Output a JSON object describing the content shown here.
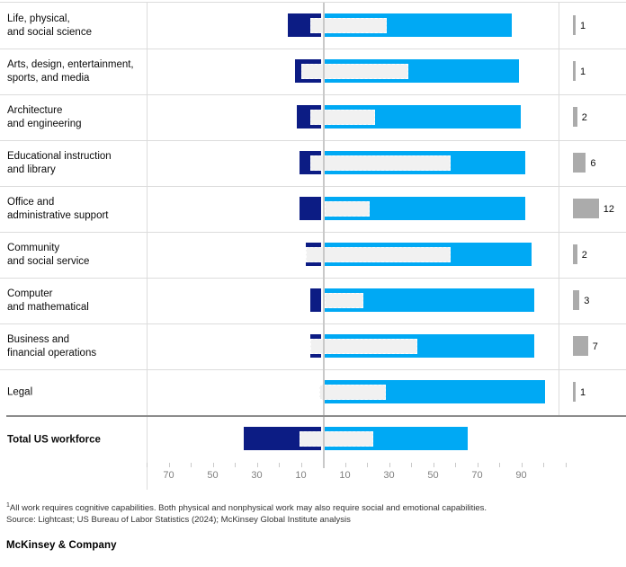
{
  "chart_data": {
    "type": "bar",
    "subtype": "diverging-horizontal-with-overlay",
    "title": "",
    "xlabel": "",
    "axis": {
      "zero_center": true,
      "range": [
        -80,
        110
      ],
      "tick_step": 10,
      "labeled_ticks_left": [
        70,
        50,
        30,
        10
      ],
      "labeled_ticks_right": [
        10,
        30,
        50,
        70,
        90
      ]
    },
    "series_meaning": {
      "left_bar": "physical work share (%)",
      "right_bar": "nonphysical work share (%)",
      "overlay_bar": "social and emotional capabilities span (%)",
      "right_column": "value shown beside gray bar"
    },
    "rows": [
      {
        "label": "Life, physical,\nand social science",
        "physical": 15,
        "nonphysical": 85,
        "social_emotional": [
          -5,
          30
        ],
        "right_value": 1
      },
      {
        "label": "Arts, design, entertainment,\nsports, and media",
        "physical": 12,
        "nonphysical": 88,
        "social_emotional": [
          -9,
          40
        ],
        "right_value": 1
      },
      {
        "label": "Architecture\nand engineering",
        "physical": 11,
        "nonphysical": 89,
        "social_emotional": [
          -5,
          25
        ],
        "right_value": 2
      },
      {
        "label": "Educational instruction\nand library",
        "physical": 10,
        "nonphysical": 91,
        "social_emotional": [
          -5,
          59
        ],
        "right_value": 6
      },
      {
        "label": "Office and\nadministrative support",
        "physical": 10,
        "nonphysical": 91,
        "social_emotional": [
          0,
          21
        ],
        "right_value": 12
      },
      {
        "label": "Community\nand social service",
        "physical": 7,
        "nonphysical": 94,
        "social_emotional": [
          -7,
          59
        ],
        "right_value": 2
      },
      {
        "label": "Computer\nand mathematical",
        "physical": 5,
        "nonphysical": 95,
        "social_emotional": [
          0,
          18
        ],
        "right_value": 3
      },
      {
        "label": "Business and\nfinancial operations",
        "physical": 5,
        "nonphysical": 95,
        "social_emotional": [
          -5,
          44
        ],
        "right_value": 7
      },
      {
        "label": "Legal",
        "physical": 0,
        "nonphysical": 100,
        "social_emotional": [
          -1,
          30
        ],
        "right_value": 1
      }
    ],
    "total_row": {
      "label": "Total US workforce",
      "physical": 35,
      "nonphysical": 65,
      "social_emotional": [
        -10,
        24
      ],
      "right_value": null
    }
  },
  "footnote": {
    "sup": "1",
    "text": "All work requires cognitive capabilities. Both physical and nonphysical work may also require social and emotional capabilities.",
    "source": "Source: Lightcast; US Bureau of Labor Statistics (2024); McKinsey Global Institute analysis"
  },
  "brand": "McKinsey & Company",
  "colors": {
    "navy": "#0c1c84",
    "cyan": "#00a9f4",
    "overlay_fill": "#f1f1f1",
    "overlay_border": "#ffffff",
    "gray_bar": "#ababab",
    "row_border": "#dcdcdc",
    "strong_border": "#8c8c8c",
    "axis_line": "#c9c9c9",
    "tick": "#c9c9c9",
    "tick_label": "#7f7f7f"
  }
}
